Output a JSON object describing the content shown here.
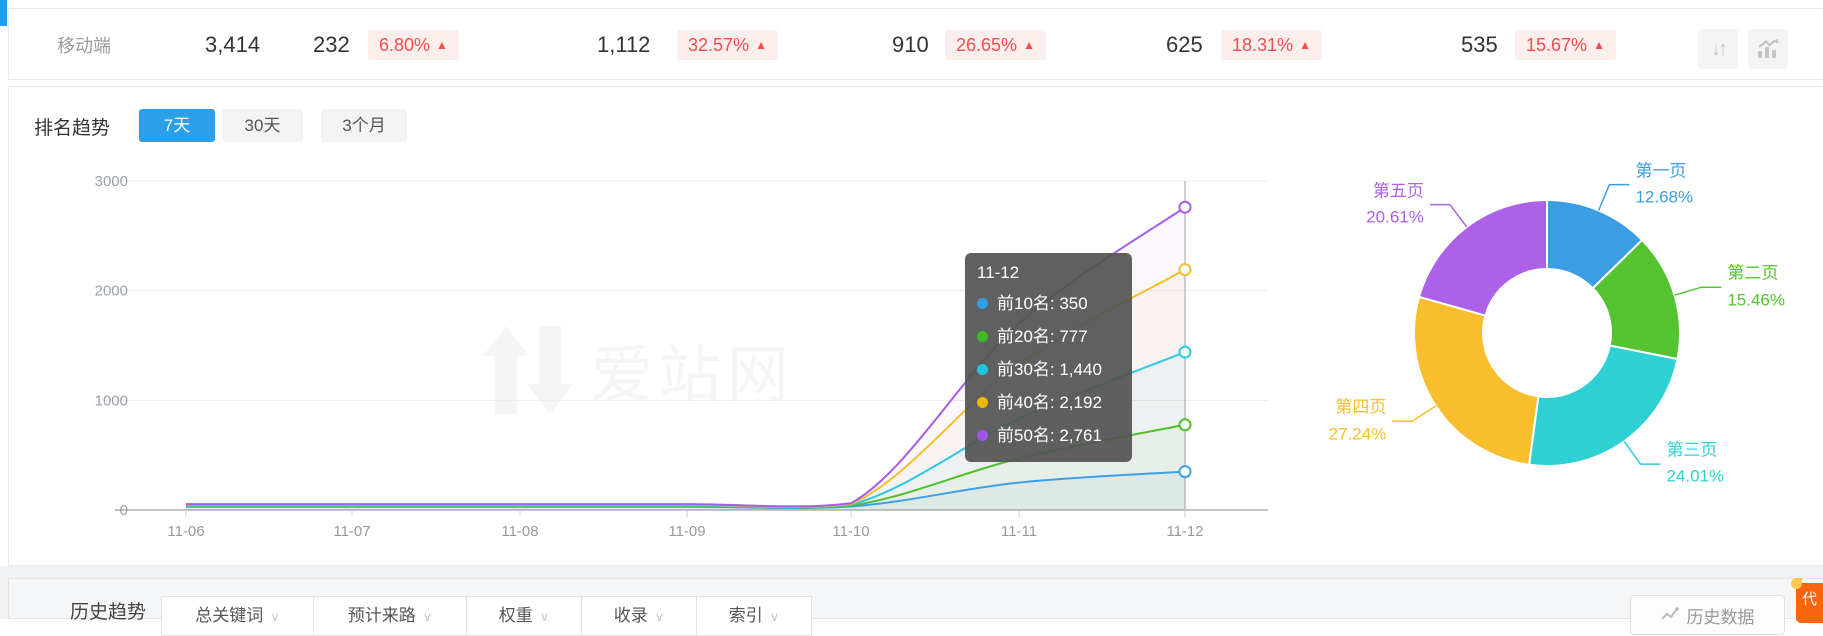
{
  "glyphs": {
    "up_arrow": "▲",
    "down_arrow_icon": "↓",
    "up_arrow_icon": "↑",
    "chevron_down": "∨"
  },
  "summary": {
    "device_label": "移动端",
    "metrics": [
      {
        "value": "3,414",
        "change": ""
      },
      {
        "value": "232",
        "change": "6.80%"
      },
      {
        "value": "1,112",
        "change": "32.57%"
      },
      {
        "value": "910",
        "change": "26.65%"
      },
      {
        "value": "625",
        "change": "18.31%"
      },
      {
        "value": "535",
        "change": "15.67%"
      }
    ],
    "change_direction": "up",
    "badge_color": "#f34e4e"
  },
  "trend": {
    "title": "排名趋势",
    "tabs": [
      {
        "label": "7天",
        "active": true
      },
      {
        "label": "30天",
        "active": false
      },
      {
        "label": "3个月",
        "active": false
      }
    ],
    "active_tab_color": "#2d9fe8"
  },
  "chart_data": [
    {
      "type": "line",
      "title": "排名趋势（7天）",
      "x": [
        "11-06",
        "11-07",
        "11-08",
        "11-09",
        "11-10",
        "11-11",
        "11-12"
      ],
      "series": [
        {
          "name": "前10名",
          "color": "#3ba0e8",
          "values": [
            30,
            30,
            30,
            30,
            32,
            250,
            350
          ]
        },
        {
          "name": "前20名",
          "color": "#4fc029",
          "values": [
            36,
            36,
            36,
            36,
            40,
            470,
            777
          ]
        },
        {
          "name": "前30名",
          "color": "#2ec9e0",
          "values": [
            42,
            42,
            42,
            42,
            48,
            830,
            1440
          ]
        },
        {
          "name": "前40名",
          "color": "#f5bf28",
          "values": [
            48,
            48,
            48,
            48,
            55,
            1330,
            2192
          ]
        },
        {
          "name": "前50名",
          "color": "#a55ce8",
          "values": [
            54,
            54,
            54,
            54,
            62,
            1700,
            2761
          ]
        }
      ],
      "ylim": [
        0,
        3000
      ],
      "yticks": [
        0,
        1000,
        2000,
        3000
      ],
      "grid": true,
      "legend": false,
      "crosshair_x": "11-12"
    },
    {
      "type": "pie",
      "donut": true,
      "labels": [
        "第一页",
        "第二页",
        "第三页",
        "第四页",
        "第五页"
      ],
      "values": [
        12.68,
        15.46,
        24.01,
        27.24,
        20.61
      ],
      "unit": "%",
      "colors": [
        "#3b9ee3",
        "#54c32f",
        "#2fd0d4",
        "#f8be2d",
        "#ad60e8"
      ],
      "label_position": "outside"
    }
  ],
  "tooltip": {
    "title": "11-12",
    "rows": [
      {
        "label": "前10名",
        "value": "350",
        "color": "#2f9fe6"
      },
      {
        "label": "前20名",
        "value": "777",
        "color": "#3dbb20"
      },
      {
        "label": "前30名",
        "value": "1,440",
        "color": "#1fc4e0"
      },
      {
        "label": "前40名",
        "value": "2,192",
        "color": "#eeb800"
      },
      {
        "label": "前50名",
        "value": "2,761",
        "color": "#a055e6"
      }
    ]
  },
  "watermark_text": "爱站网",
  "history": {
    "title": "历史趋势",
    "tabs": [
      {
        "label": "总关键词"
      },
      {
        "label": "预计来路"
      },
      {
        "label": "权重"
      },
      {
        "label": "收录"
      },
      {
        "label": "索引"
      }
    ],
    "history_data_button": "历史数据",
    "ribbon": "代"
  }
}
